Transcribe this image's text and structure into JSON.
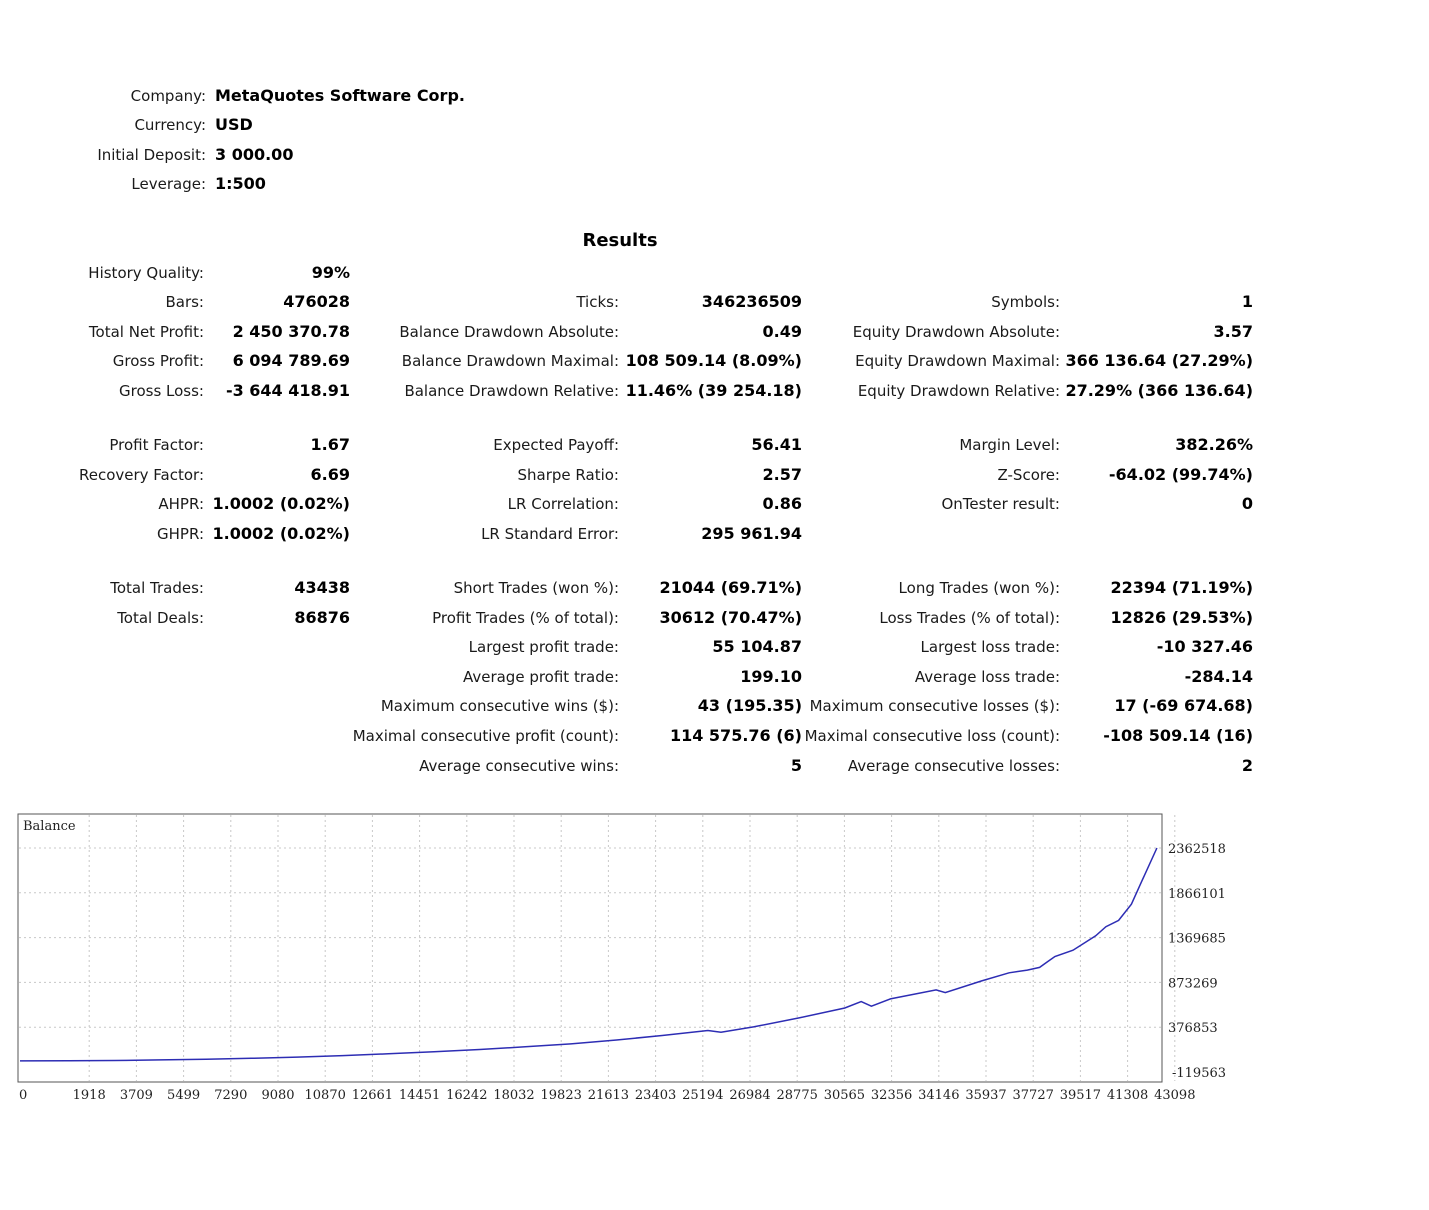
{
  "header": {
    "company_label": "Company:",
    "company_value": "MetaQuotes Software Corp.",
    "currency_label": "Currency:",
    "currency_value": "USD",
    "deposit_label": "Initial Deposit:",
    "deposit_value": "3 000.00",
    "leverage_label": "Leverage:",
    "leverage_value": "1:500"
  },
  "results_title": "Results",
  "col1": [
    {
      "label": "History Quality:",
      "value": "99%"
    },
    {
      "label": "Bars:",
      "value": "476028"
    },
    {
      "label": "Total Net Profit:",
      "value": "2 450 370.78"
    },
    {
      "label": "Gross Profit:",
      "value": "6 094 789.69"
    },
    {
      "label": "Gross Loss:",
      "value": "-3 644 418.91"
    },
    {
      "label": "Profit Factor:",
      "value": "1.67"
    },
    {
      "label": "Recovery Factor:",
      "value": "6.69"
    },
    {
      "label": "AHPR:",
      "value": "1.0002 (0.02%)"
    },
    {
      "label": "GHPR:",
      "value": "1.0002 (0.02%)"
    },
    {
      "label": "Total Trades:",
      "value": "43438"
    },
    {
      "label": "Total Deals:",
      "value": "86876"
    }
  ],
  "col2": [
    {
      "label": "Ticks:",
      "value": "346236509"
    },
    {
      "label": "Balance Drawdown Absolute:",
      "value": "0.49"
    },
    {
      "label": "Balance Drawdown Maximal:",
      "value": "108 509.14 (8.09%)"
    },
    {
      "label": "Balance Drawdown Relative:",
      "value": "11.46% (39 254.18)"
    },
    {
      "label": "Expected Payoff:",
      "value": "56.41"
    },
    {
      "label": "Sharpe Ratio:",
      "value": "2.57"
    },
    {
      "label": "LR Correlation:",
      "value": "0.86"
    },
    {
      "label": "LR Standard Error:",
      "value": "295 961.94"
    },
    {
      "label": "Short Trades (won %):",
      "value": "21044 (69.71%)"
    },
    {
      "label": "Profit Trades (% of total):",
      "value": "30612 (70.47%)"
    },
    {
      "label": "Largest profit trade:",
      "value": "55 104.87"
    },
    {
      "label": "Average profit trade:",
      "value": "199.10"
    },
    {
      "label": "Maximum consecutive wins ($):",
      "value": "43 (195.35)"
    },
    {
      "label": "Maximal consecutive profit (count):",
      "value": "114 575.76 (6)"
    },
    {
      "label": "Average consecutive wins:",
      "value": "5"
    }
  ],
  "col3": [
    {
      "label": "Symbols:",
      "value": "1"
    },
    {
      "label": "Equity Drawdown Absolute:",
      "value": "3.57"
    },
    {
      "label": "Equity Drawdown Maximal:",
      "value": "366 136.64 (27.29%)"
    },
    {
      "label": "Equity Drawdown Relative:",
      "value": "27.29% (366 136.64)"
    },
    {
      "label": "Margin Level:",
      "value": "382.26%"
    },
    {
      "label": "Z-Score:",
      "value": "-64.02 (99.74%)"
    },
    {
      "label": "OnTester result:",
      "value": "0"
    },
    {
      "label": "Long Trades (won %):",
      "value": "22394 (71.19%)"
    },
    {
      "label": "Loss Trades (% of total):",
      "value": "12826 (29.53%)"
    },
    {
      "label": "Largest loss trade:",
      "value": "-10 327.46"
    },
    {
      "label": "Average loss trade:",
      "value": "-284.14"
    },
    {
      "label": "Maximum consecutive losses ($):",
      "value": "17 (-69 674.68)"
    },
    {
      "label": "Maximal consecutive loss (count):",
      "value": "-108 509.14 (16)"
    },
    {
      "label": "Average consecutive losses:",
      "value": "2"
    }
  ],
  "chart_data": {
    "type": "line",
    "title": "Balance",
    "xlabel": "",
    "ylabel": "",
    "xlim": [
      0,
      44800
    ],
    "ylim": [
      -119563,
      2500000
    ],
    "x_tick_labels": [
      "0",
      "1918",
      "3709",
      "5499",
      "7290",
      "9080",
      "10870",
      "12661",
      "14451",
      "16242",
      "18032",
      "19823",
      "21613",
      "23403",
      "25194",
      "26984",
      "28775",
      "30565",
      "32356",
      "34146",
      "35937",
      "37727",
      "39517",
      "41308",
      "43098"
    ],
    "y_tick_labels": [
      "2362518",
      "1866101",
      "1369685",
      "873269",
      "376853",
      "-119563"
    ],
    "y_tick_values": [
      2362518,
      1866101,
      1369685,
      873269,
      376853,
      -119563
    ],
    "grid": true,
    "colors": {
      "line": "#2d2db4",
      "grid": "#c8c8c8",
      "frame": "#555555"
    },
    "series": [
      {
        "x": [
          0,
          1918,
          3709,
          5499,
          7290,
          9080,
          10870,
          12661,
          14451,
          16242,
          18032,
          19823,
          21613,
          23403,
          25194,
          26984,
          27500,
          28775,
          30565,
          32356,
          33000,
          33400,
          34146,
          35937,
          36300,
          37727,
          38800,
          39517,
          40000,
          40300,
          40600,
          41308,
          42200,
          42600,
          43098,
          43600,
          44000,
          44600
        ],
        "y": [
          3000,
          5000,
          8000,
          14000,
          22000,
          32000,
          45000,
          62000,
          82000,
          105000,
          130000,
          160000,
          192000,
          235000,
          285000,
          340000,
          320000,
          380000,
          480000,
          590000,
          660000,
          610000,
          690000,
          790000,
          760000,
          890000,
          980000,
          1010000,
          1040000,
          1100000,
          1160000,
          1230000,
          1390000,
          1490000,
          1560000,
          1740000,
          1990000,
          2362518
        ]
      }
    ]
  }
}
